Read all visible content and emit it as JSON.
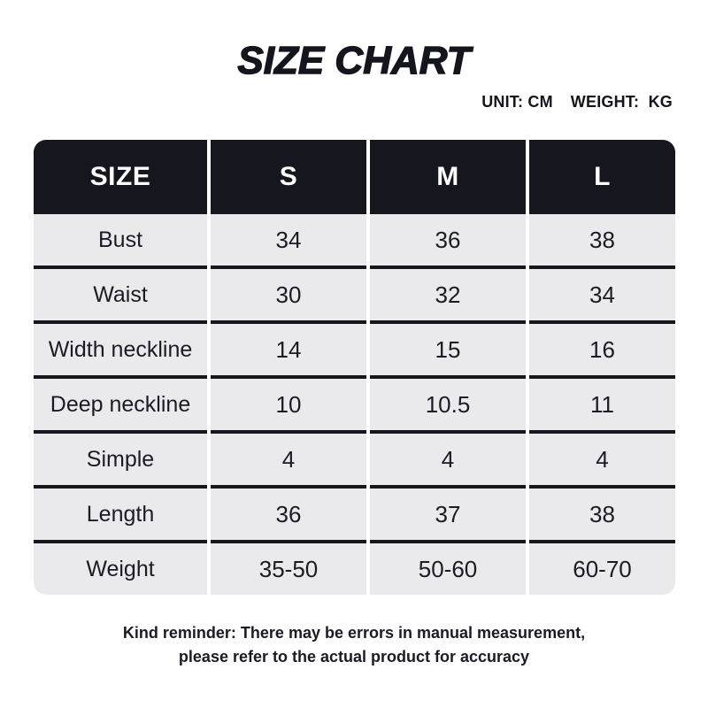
{
  "header": {
    "title": "SIZE CHART",
    "unit_note": "UNIT: CM",
    "weight_note": "WEIGHT:  KG"
  },
  "chart_data": {
    "type": "table",
    "title": "SIZE CHART",
    "unit": "CM",
    "weight_unit": "KG",
    "columns": [
      "SIZE",
      "S",
      "M",
      "L"
    ],
    "rows": [
      [
        "Bust",
        "34",
        "36",
        "38"
      ],
      [
        "Waist",
        "30",
        "32",
        "34"
      ],
      [
        "Width neckline",
        "14",
        "15",
        "16"
      ],
      [
        "Deep neckline",
        "10",
        "10.5",
        "11"
      ],
      [
        "Simple",
        "4",
        "4",
        "4"
      ],
      [
        "Length",
        "36",
        "37",
        "38"
      ],
      [
        "Weight",
        "35-50",
        "50-60",
        "60-70"
      ]
    ]
  },
  "footer": {
    "line1": "Kind reminder: There may be errors in manual measurement,",
    "line2": "please refer to the actual product for accuracy"
  },
  "colors": {
    "header_bg": "#16161f",
    "row_bg": "#eaeaec",
    "divider": "#16161f",
    "header_text": "#ffffff",
    "cell_text": "#1b1b26",
    "page_bg": "#ffffff"
  }
}
